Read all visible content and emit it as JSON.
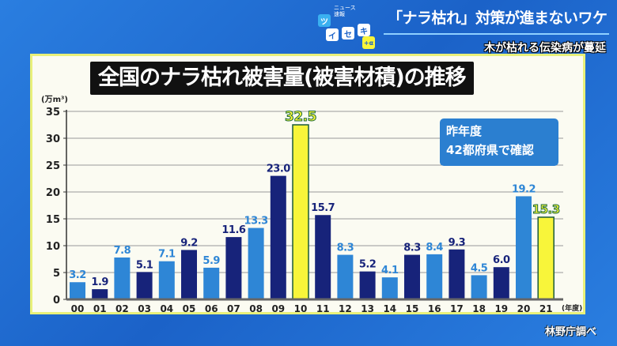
{
  "header": {
    "logo_text": [
      "ニュース",
      "速報",
      "ツ",
      "イ",
      "セ",
      "キ",
      "+α"
    ],
    "headline": "「ナラ枯れ」対策が進まないワケ",
    "subheadline": "木が枯れる伝染病が蔓延"
  },
  "callout": {
    "line1": "昨年度",
    "line2": "42都府県で確認"
  },
  "source": "林野庁調べ",
  "colors": {
    "dark": "#17237a",
    "light": "#2e86d6",
    "highlight": "#f8f53a",
    "background": "#1f6fd0"
  },
  "chart_data": {
    "type": "bar",
    "title": "全国のナラ枯れ被害量(被害材積)の推移",
    "ylabel": "(万m³)",
    "xlabel": "(年度)",
    "ylim": [
      0,
      35
    ],
    "yticks": [
      0,
      5,
      10,
      15,
      20,
      25,
      30,
      35
    ],
    "grid": true,
    "categories": [
      "00",
      "01",
      "02",
      "03",
      "04",
      "05",
      "06",
      "07",
      "08",
      "09",
      "10",
      "11",
      "12",
      "13",
      "14",
      "15",
      "16",
      "17",
      "18",
      "19",
      "20",
      "21"
    ],
    "values": [
      3.2,
      1.9,
      7.8,
      5.1,
      7.1,
      9.2,
      5.9,
      11.6,
      13.3,
      23.0,
      32.5,
      15.7,
      8.3,
      5.2,
      4.1,
      8.3,
      8.4,
      9.3,
      4.5,
      6.0,
      19.2,
      15.3
    ],
    "labels": [
      "3.2",
      "1.9",
      "7.8",
      "5.1",
      "7.1",
      "9.2",
      "5.9",
      "11.6",
      "13.3",
      "23.0",
      "32.5",
      "15.7",
      "8.3",
      "5.2",
      "4.1",
      "8.3",
      "8.4",
      "9.3",
      "4.5",
      "6.0",
      "19.2",
      "15.3"
    ],
    "bar_styles": [
      "light",
      "dark",
      "light",
      "dark",
      "light",
      "dark",
      "light",
      "dark",
      "light",
      "dark",
      "highlight",
      "dark",
      "light",
      "dark",
      "light",
      "dark",
      "light",
      "dark",
      "light",
      "dark",
      "light",
      "highlight"
    ]
  }
}
